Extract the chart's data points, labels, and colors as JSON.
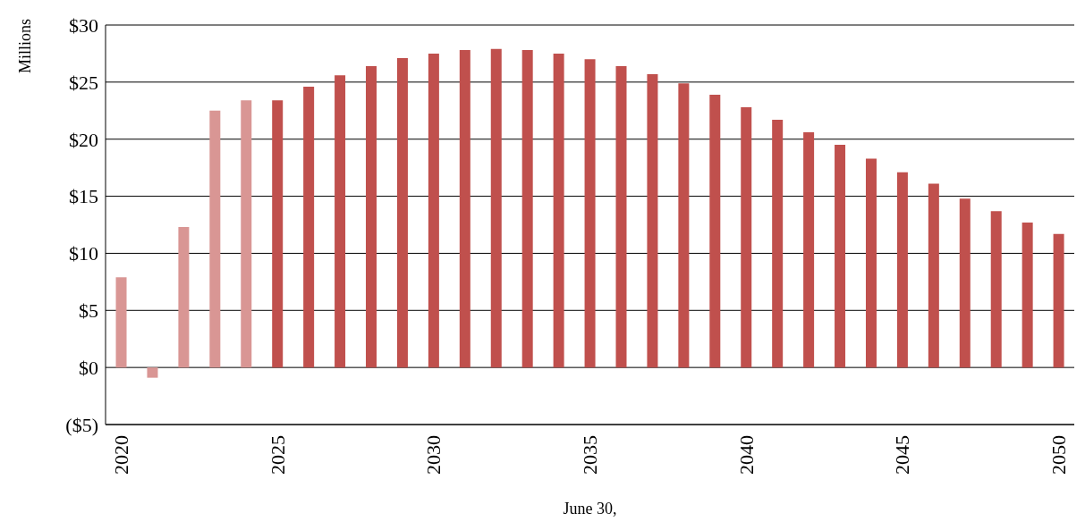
{
  "chart_data": {
    "type": "bar",
    "xlabel": "June 30,",
    "ylabel": "Millions",
    "categories": [
      "2020",
      null,
      null,
      null,
      null,
      "2025",
      null,
      null,
      null,
      null,
      "2030",
      null,
      null,
      null,
      null,
      "2035",
      null,
      null,
      null,
      null,
      "2040",
      null,
      null,
      null,
      null,
      "2045",
      null,
      null,
      null,
      null,
      "2050"
    ],
    "values": [
      7.9,
      -0.9,
      12.3,
      22.5,
      23.4,
      23.4,
      24.6,
      25.6,
      26.4,
      27.1,
      27.5,
      27.8,
      27.9,
      27.8,
      27.5,
      27.0,
      26.4,
      25.7,
      24.9,
      23.9,
      22.8,
      21.7,
      20.6,
      19.5,
      18.3,
      17.1,
      16.1,
      14.8,
      13.7,
      12.7,
      11.7
    ],
    "colors": [
      "#d99694",
      "#d99694",
      "#d99694",
      "#d99694",
      "#d99694",
      "#c0504d",
      "#c0504d",
      "#c0504d",
      "#c0504d",
      "#c0504d",
      "#c0504d",
      "#c0504d",
      "#c0504d",
      "#c0504d",
      "#c0504d",
      "#c0504d",
      "#c0504d",
      "#c0504d",
      "#c0504d",
      "#c0504d",
      "#c0504d",
      "#c0504d",
      "#c0504d",
      "#c0504d",
      "#c0504d",
      "#c0504d",
      "#c0504d",
      "#c0504d",
      "#c0504d",
      "#c0504d",
      "#c0504d"
    ],
    "ylim": [
      -5,
      30
    ],
    "yticks": [
      {
        "value": -5,
        "label": "($5)"
      },
      {
        "value": 0,
        "label": "$0"
      },
      {
        "value": 5,
        "label": "$5"
      },
      {
        "value": 10,
        "label": "$10"
      },
      {
        "value": 15,
        "label": "$15"
      },
      {
        "value": 20,
        "label": "$20"
      },
      {
        "value": 25,
        "label": "$25"
      },
      {
        "value": 30,
        "label": "$30"
      }
    ],
    "grid": "y",
    "legend": false
  }
}
